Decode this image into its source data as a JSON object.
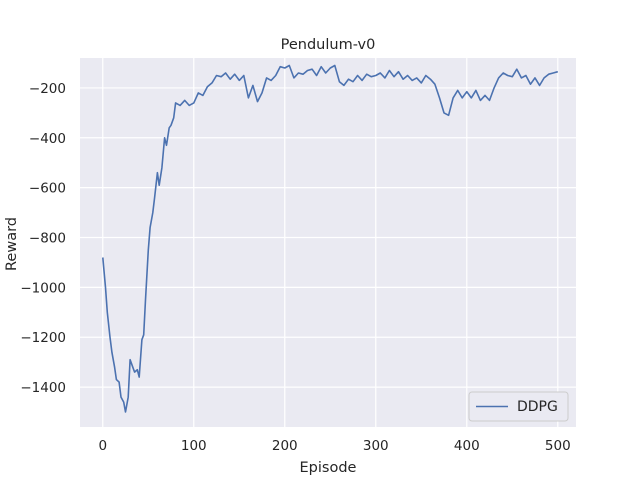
{
  "chart_data": {
    "type": "line",
    "title": "Pendulum-v0",
    "xlabel": "Episode",
    "ylabel": "Reward",
    "xlim": [
      -25,
      520
    ],
    "ylim": [
      -1560,
      -80
    ],
    "xticks": [
      0,
      100,
      200,
      300,
      400,
      500
    ],
    "yticks": [
      -1400,
      -1200,
      -1000,
      -800,
      -600,
      -400,
      -200
    ],
    "grid": true,
    "legend_position": "bottom-right",
    "colors": {
      "plot_background": "#eaeaf2",
      "grid": "#ffffff",
      "series": "#4c72b0"
    },
    "series": [
      {
        "name": "DDPG",
        "x": [
          0,
          3,
          5,
          8,
          10,
          13,
          15,
          18,
          20,
          23,
          25,
          28,
          30,
          33,
          35,
          38,
          40,
          43,
          45,
          47,
          50,
          52,
          55,
          57,
          60,
          62,
          65,
          68,
          70,
          73,
          75,
          78,
          80,
          85,
          90,
          95,
          100,
          105,
          110,
          115,
          120,
          125,
          130,
          135,
          140,
          145,
          150,
          155,
          160,
          165,
          170,
          175,
          180,
          185,
          190,
          195,
          200,
          205,
          210,
          215,
          220,
          225,
          230,
          235,
          240,
          245,
          250,
          255,
          260,
          265,
          270,
          275,
          280,
          285,
          290,
          295,
          300,
          305,
          310,
          315,
          320,
          325,
          330,
          335,
          340,
          345,
          350,
          355,
          360,
          365,
          370,
          375,
          380,
          385,
          390,
          395,
          400,
          405,
          410,
          415,
          420,
          425,
          430,
          435,
          440,
          445,
          450,
          455,
          460,
          465,
          470,
          475,
          480,
          485,
          490,
          495,
          500
        ],
        "y": [
          -880,
          -1000,
          -1100,
          -1200,
          -1260,
          -1320,
          -1370,
          -1380,
          -1440,
          -1460,
          -1500,
          -1440,
          -1290,
          -1320,
          -1340,
          -1330,
          -1360,
          -1210,
          -1190,
          -1050,
          -850,
          -760,
          -700,
          -640,
          -540,
          -590,
          -520,
          -400,
          -430,
          -360,
          -350,
          -320,
          -260,
          -270,
          -250,
          -270,
          -260,
          -220,
          -230,
          -195,
          -180,
          -150,
          -155,
          -140,
          -165,
          -145,
          -170,
          -150,
          -240,
          -190,
          -255,
          -220,
          -160,
          -170,
          -150,
          -115,
          -120,
          -110,
          -160,
          -140,
          -145,
          -130,
          -125,
          -150,
          -115,
          -140,
          -120,
          -110,
          -175,
          -190,
          -165,
          -175,
          -150,
          -170,
          -145,
          -155,
          -150,
          -140,
          -160,
          -130,
          -155,
          -135,
          -165,
          -150,
          -170,
          -160,
          -180,
          -150,
          -165,
          -185,
          -240,
          -300,
          -310,
          -240,
          -210,
          -240,
          -215,
          -240,
          -210,
          -250,
          -230,
          -250,
          -200,
          -160,
          -140,
          -150,
          -155,
          -125,
          -160,
          -150,
          -185,
          -160,
          -190,
          -160,
          -145,
          -140,
          -135
        ]
      }
    ]
  }
}
